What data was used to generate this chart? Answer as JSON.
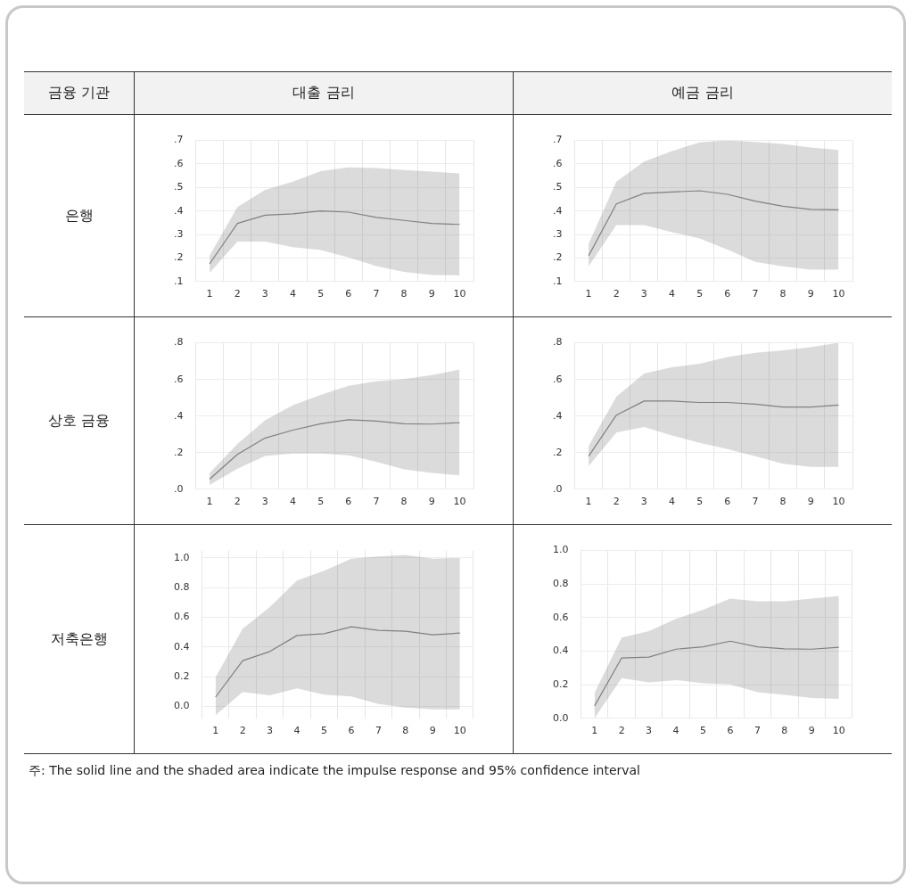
{
  "chart_data": [
    {
      "type": "line",
      "title": "대출 금리",
      "ylabel": "은행",
      "annotations": [
        "금융 기관",
        "주: The solid line and the shaded area indicate the impulse response and 95% confidence interval"
      ],
      "categories": [
        "1",
        "2",
        "3",
        "4",
        "5",
        "6",
        "7",
        "8",
        "9",
        "10"
      ],
      "ylim": [
        0.1,
        0.7
      ],
      "yticks": [
        {
          "value": 0.1,
          "label": ".1"
        },
        {
          "value": 0.2,
          "label": ".2"
        },
        {
          "value": 0.3,
          "label": ".3"
        },
        {
          "value": 0.4,
          "label": ".4"
        },
        {
          "value": 0.5,
          "label": ".5"
        },
        {
          "value": 0.6,
          "label": ".6"
        },
        {
          "value": 0.7,
          "label": ".7"
        }
      ],
      "grid": true,
      "legend": false,
      "marker": "none",
      "line_style": "solid",
      "series": [
        {
          "color": "#808080",
          "values": [
            0.175,
            0.347,
            0.382,
            0.388,
            0.4,
            0.395,
            0.373,
            0.36,
            0.347,
            0.343
          ],
          "lower": [
            0.137,
            0.27,
            0.27,
            0.246,
            0.234,
            0.203,
            0.166,
            0.141,
            0.128,
            0.126
          ],
          "upper": [
            0.21,
            0.417,
            0.49,
            0.525,
            0.57,
            0.586,
            0.583,
            0.574,
            0.568,
            0.56
          ]
        }
      ]
    },
    {
      "type": "line",
      "title": "예금 금리",
      "categories": [
        "1",
        "2",
        "3",
        "4",
        "5",
        "6",
        "7",
        "8",
        "9",
        "10"
      ],
      "ylim": [
        0.1,
        0.7
      ],
      "yticks": [
        {
          "value": 0.1,
          "label": ".1"
        },
        {
          "value": 0.2,
          "label": ".2"
        },
        {
          "value": 0.3,
          "label": ".3"
        },
        {
          "value": 0.4,
          "label": ".4"
        },
        {
          "value": 0.5,
          "label": ".5"
        },
        {
          "value": 0.6,
          "label": ".6"
        },
        {
          "value": 0.7,
          "label": ".7"
        }
      ],
      "grid": true,
      "legend": false,
      "marker": "none",
      "line_style": "solid",
      "series": [
        {
          "color": "#808080",
          "values": [
            0.209,
            0.43,
            0.475,
            0.481,
            0.486,
            0.471,
            0.442,
            0.42,
            0.407,
            0.405
          ],
          "lower": [
            0.165,
            0.34,
            0.34,
            0.31,
            0.283,
            0.236,
            0.184,
            0.165,
            0.15,
            0.15
          ],
          "upper": [
            0.26,
            0.525,
            0.61,
            0.655,
            0.692,
            0.7,
            0.694,
            0.685,
            0.67,
            0.66
          ]
        }
      ]
    },
    {
      "type": "line",
      "ylabel": "상호 금융",
      "categories": [
        "1",
        "2",
        "3",
        "4",
        "5",
        "6",
        "7",
        "8",
        "9",
        "10"
      ],
      "ylim": [
        0,
        0.8
      ],
      "yticks": [
        {
          "value": 0,
          "label": ".0"
        },
        {
          "value": 0.2,
          "label": ".2"
        },
        {
          "value": 0.4,
          "label": ".4"
        },
        {
          "value": 0.6,
          "label": ".6"
        },
        {
          "value": 0.8,
          "label": ".8"
        }
      ],
      "grid": true,
      "legend": false,
      "marker": "none",
      "line_style": "solid",
      "series": [
        {
          "color": "#808080",
          "values": [
            0.055,
            0.19,
            0.28,
            0.323,
            0.358,
            0.38,
            0.372,
            0.358,
            0.356,
            0.364
          ],
          "lower": [
            0.023,
            0.112,
            0.182,
            0.195,
            0.195,
            0.185,
            0.15,
            0.109,
            0.089,
            0.076
          ],
          "upper": [
            0.088,
            0.247,
            0.377,
            0.459,
            0.515,
            0.566,
            0.59,
            0.602,
            0.624,
            0.654
          ]
        }
      ]
    },
    {
      "type": "line",
      "categories": [
        "1",
        "2",
        "3",
        "4",
        "5",
        "6",
        "7",
        "8",
        "9",
        "10"
      ],
      "ylim": [
        0,
        0.8
      ],
      "yticks": [
        {
          "value": 0,
          "label": ".0"
        },
        {
          "value": 0.2,
          "label": ".2"
        },
        {
          "value": 0.4,
          "label": ".4"
        },
        {
          "value": 0.6,
          "label": ".6"
        },
        {
          "value": 0.8,
          "label": ".8"
        }
      ],
      "grid": true,
      "legend": false,
      "marker": "none",
      "line_style": "solid",
      "series": [
        {
          "color": "#808080",
          "values": [
            0.18,
            0.405,
            0.482,
            0.482,
            0.474,
            0.474,
            0.465,
            0.449,
            0.449,
            0.46
          ],
          "lower": [
            0.126,
            0.31,
            0.34,
            0.294,
            0.253,
            0.22,
            0.18,
            0.139,
            0.122,
            0.122
          ],
          "upper": [
            0.237,
            0.506,
            0.632,
            0.666,
            0.686,
            0.722,
            0.746,
            0.759,
            0.776,
            0.8
          ]
        }
      ]
    },
    {
      "type": "line",
      "ylabel": "저축은행",
      "categories": [
        "1",
        "2",
        "3",
        "4",
        "5",
        "6",
        "7",
        "8",
        "9",
        "10"
      ],
      "ylim": [
        -0.08,
        1.05
      ],
      "yticks": [
        {
          "value": 0,
          "label": "0.0"
        },
        {
          "value": 0.2,
          "label": "0.2"
        },
        {
          "value": 0.4,
          "label": "0.4"
        },
        {
          "value": 0.6,
          "label": "0.6"
        },
        {
          "value": 0.8,
          "label": "0.8"
        },
        {
          "value": 1,
          "label": "1.0"
        }
      ],
      "grid": true,
      "legend": false,
      "marker": "none",
      "line_style": "solid",
      "series": [
        {
          "color": "#808080",
          "values": [
            0.063,
            0.308,
            0.37,
            0.478,
            0.49,
            0.536,
            0.513,
            0.506,
            0.483,
            0.494
          ],
          "lower": [
            -0.058,
            0.098,
            0.075,
            0.121,
            0.079,
            0.068,
            0.016,
            -0.007,
            -0.019,
            -0.019
          ],
          "upper": [
            0.196,
            0.524,
            0.669,
            0.848,
            0.914,
            0.995,
            1.01,
            1.02,
            0.995,
            1.0
          ]
        }
      ]
    },
    {
      "type": "line",
      "categories": [
        "1",
        "2",
        "3",
        "4",
        "5",
        "6",
        "7",
        "8",
        "9",
        "10"
      ],
      "ylim": [
        0,
        1
      ],
      "yticks": [
        {
          "value": 0,
          "label": "0.0"
        },
        {
          "value": 0.2,
          "label": "0.2"
        },
        {
          "value": 0.4,
          "label": "0.4"
        },
        {
          "value": 0.6,
          "label": "0.6"
        },
        {
          "value": 0.8,
          "label": "0.8"
        },
        {
          "value": 1,
          "label": "1.0"
        }
      ],
      "grid": true,
      "legend": false,
      "marker": "none",
      "line_style": "solid",
      "series": [
        {
          "color": "#808080",
          "values": [
            0.074,
            0.36,
            0.365,
            0.412,
            0.426,
            0.46,
            0.426,
            0.414,
            0.412,
            0.423
          ],
          "lower": [
            0,
            0.24,
            0.214,
            0.228,
            0.209,
            0.202,
            0.156,
            0.14,
            0.121,
            0.116
          ],
          "upper": [
            0.151,
            0.481,
            0.519,
            0.593,
            0.647,
            0.714,
            0.698,
            0.698,
            0.714,
            0.73
          ]
        }
      ]
    }
  ]
}
